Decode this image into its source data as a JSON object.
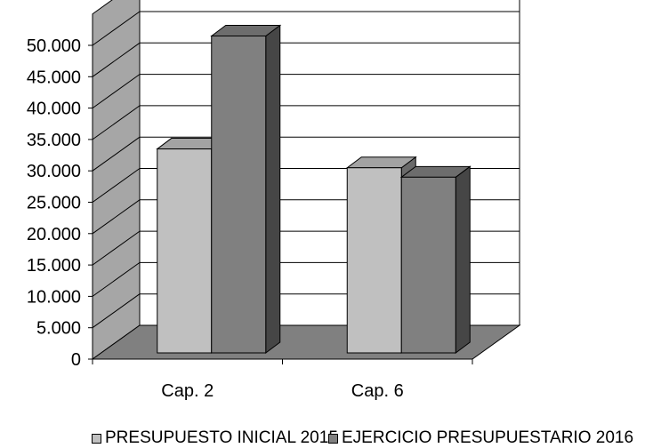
{
  "chart_data": {
    "type": "bar",
    "categories": [
      "Cap. 2",
      "Cap. 6"
    ],
    "series": [
      {
        "name": "PRESUPUESTO INICIAL 2015",
        "values": [
          32500,
          29500
        ],
        "color": "#c0c0c0"
      },
      {
        "name": "EJERCICIO PRESUPUESTARIO 2016",
        "values": [
          50500,
          28000
        ],
        "color": "#808080"
      }
    ],
    "yticks": [
      "0",
      "5.000",
      "10.000",
      "15.000",
      "20.000",
      "25.000",
      "30.000",
      "35.000",
      "40.000",
      "45.000",
      "50.000"
    ],
    "ylim": [
      0,
      55000
    ],
    "grid": true,
    "three_d": true,
    "legend_position": "bottom",
    "title": "",
    "xlabel": "",
    "ylabel": ""
  }
}
